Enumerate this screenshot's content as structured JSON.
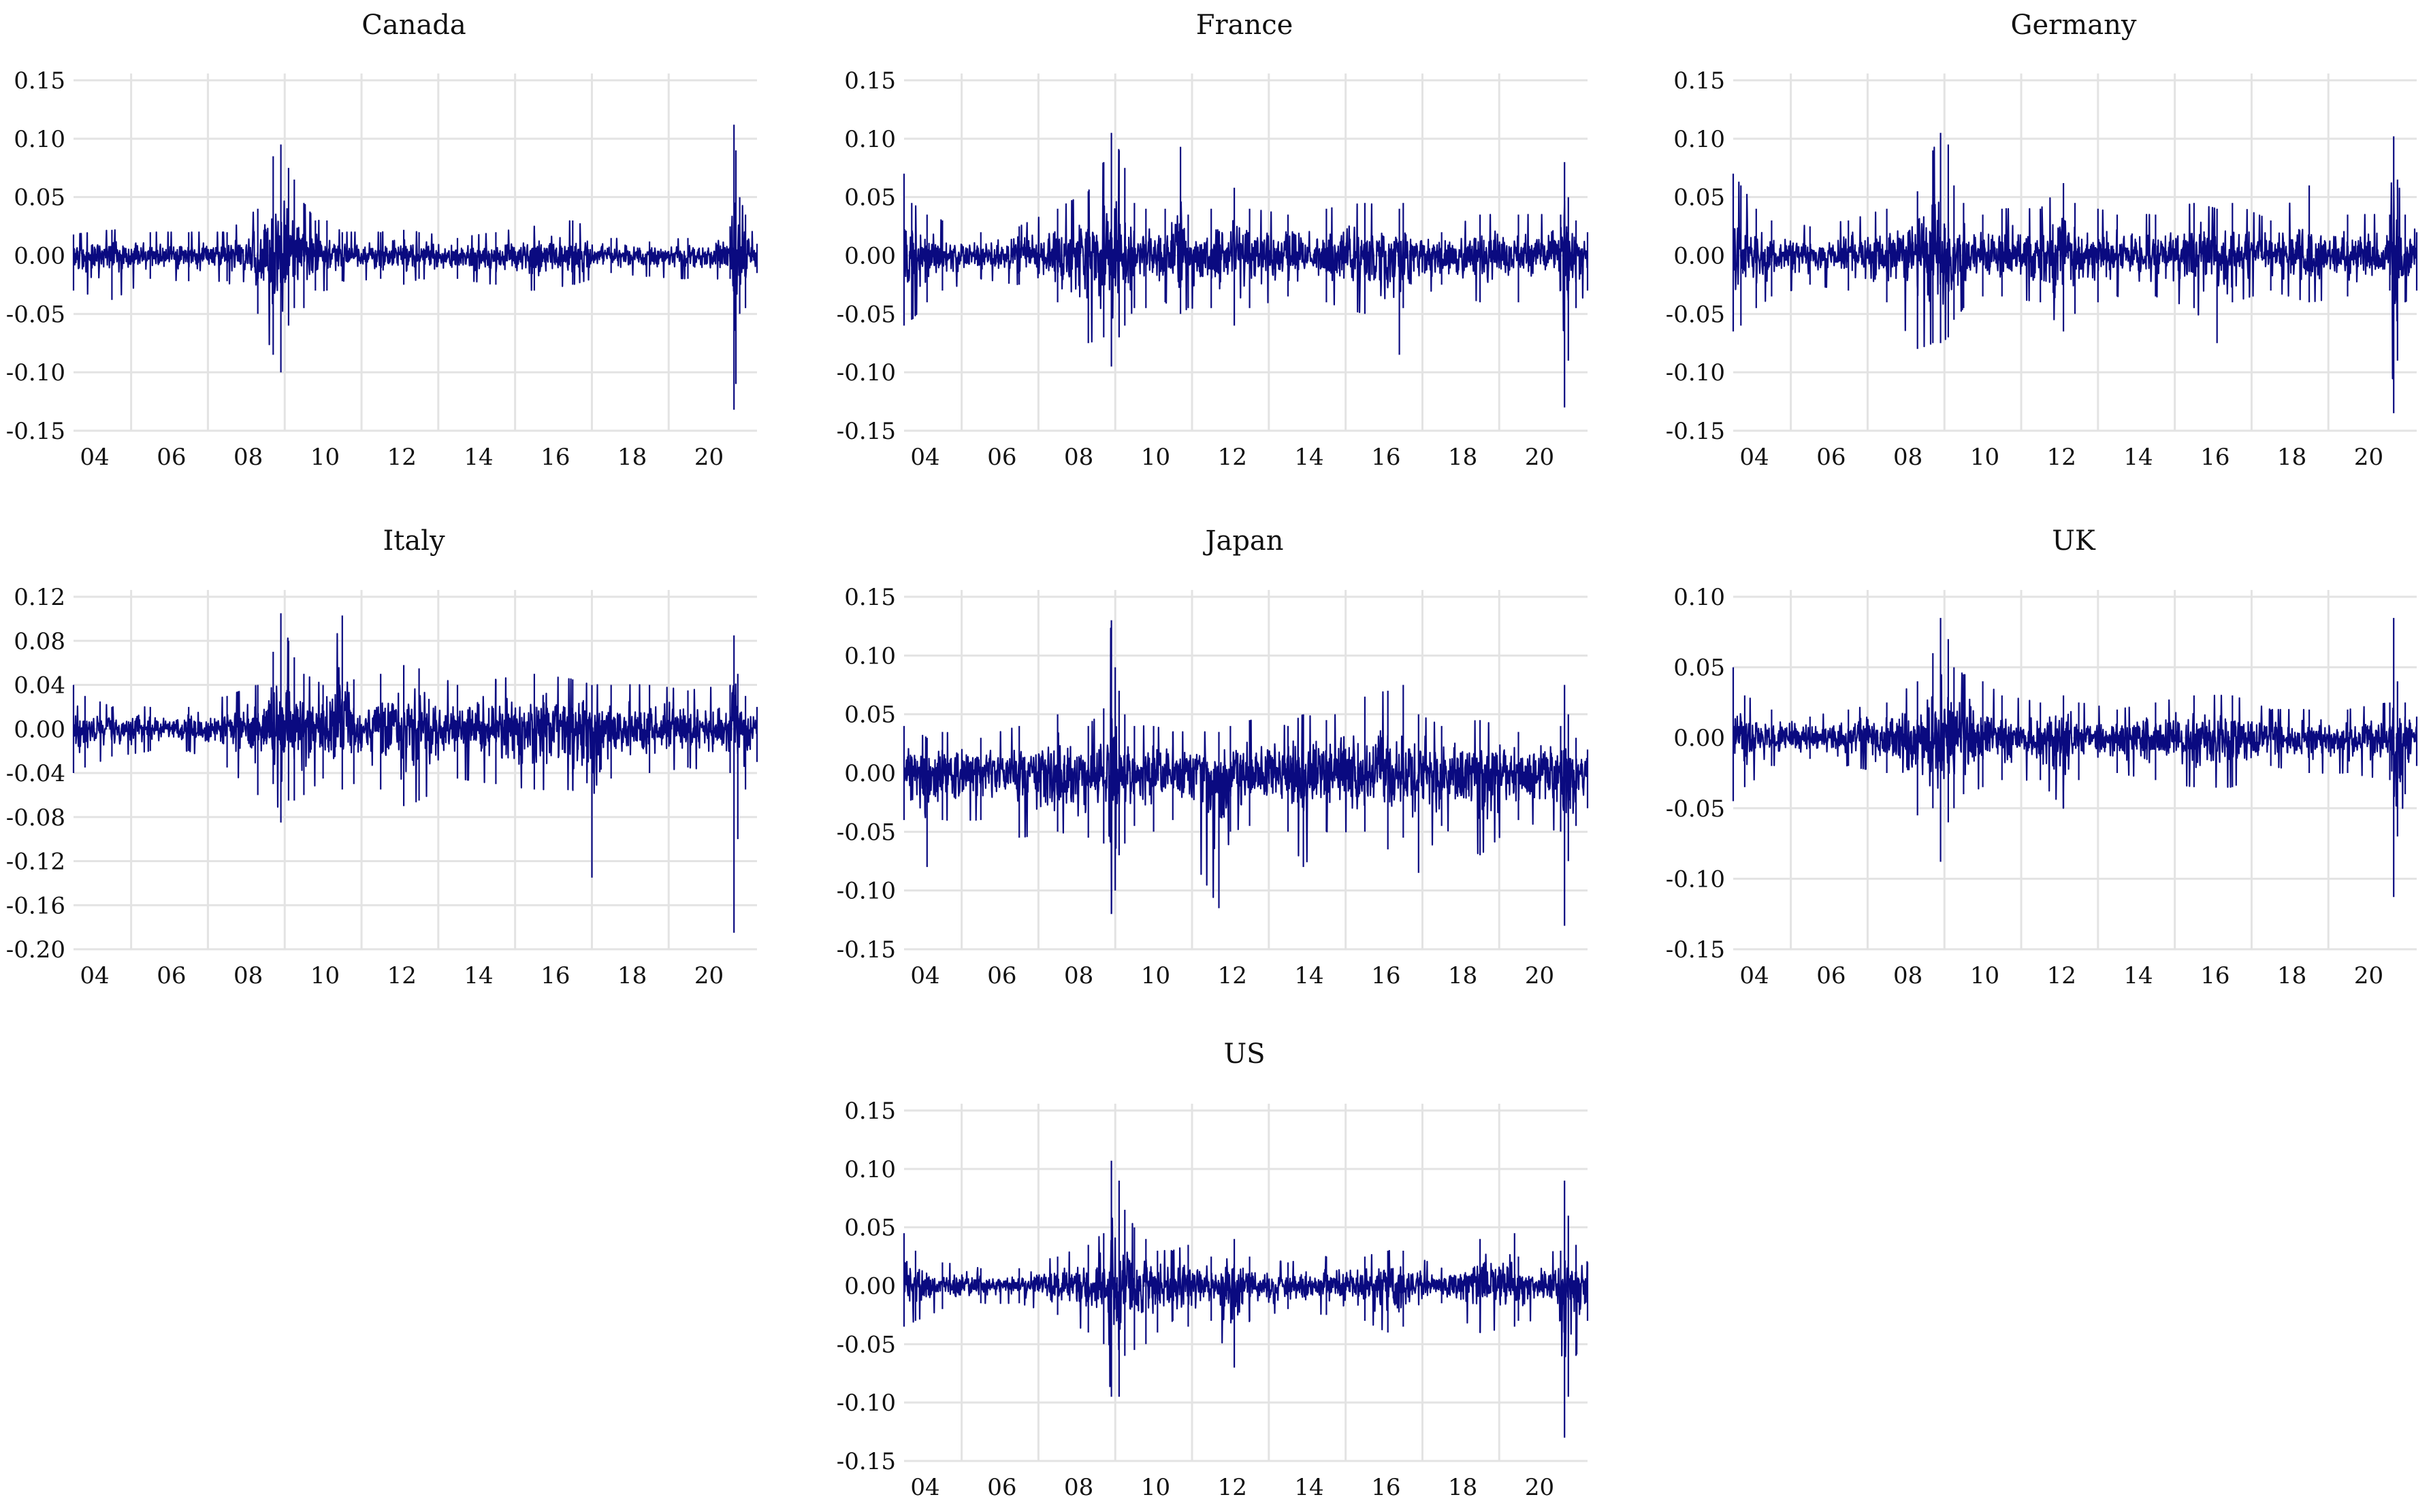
{
  "chart_data": [
    {
      "type": "line",
      "title": "Canada",
      "x_ticks": [
        "04",
        "06",
        "08",
        "10",
        "12",
        "14",
        "16",
        "18",
        "20"
      ],
      "y_ticks": [
        "0.15",
        "0.10",
        "0.05",
        "0.00",
        "-0.05",
        "-0.10",
        "-0.15"
      ],
      "ylim": [
        -0.15,
        0.15
      ],
      "xlim": [
        2003.0,
        2020.8
      ],
      "grid": true,
      "line_color": "#0a0a80",
      "series": [
        {
          "x": [
            2003.0,
            2004.0,
            2005.0,
            2006.0,
            2007.0,
            2007.8,
            2008.2,
            2008.4,
            2008.6,
            2008.75,
            2009.0,
            2009.3,
            2009.6,
            2010.0,
            2011.0,
            2011.6,
            2012.0,
            2013.0,
            2014.0,
            2015.0,
            2016.0,
            2017.0,
            2018.0,
            2019.0,
            2020.1,
            2020.2,
            2020.25,
            2020.35,
            2020.5,
            2020.8
          ],
          "low": [
            -0.03,
            -0.038,
            -0.02,
            -0.022,
            -0.022,
            -0.05,
            -0.085,
            -0.1,
            -0.06,
            -0.045,
            -0.045,
            -0.03,
            -0.03,
            -0.022,
            -0.02,
            -0.025,
            -0.02,
            -0.02,
            -0.025,
            -0.03,
            -0.025,
            -0.015,
            -0.018,
            -0.02,
            -0.02,
            -0.132,
            -0.11,
            -0.05,
            -0.045,
            -0.015
          ],
          "high": [
            0.018,
            0.022,
            0.02,
            0.02,
            0.02,
            0.04,
            0.085,
            0.095,
            0.075,
            0.065,
            0.045,
            0.03,
            0.03,
            0.02,
            0.02,
            0.022,
            0.02,
            0.015,
            0.02,
            0.025,
            0.03,
            0.015,
            0.012,
            0.015,
            0.025,
            0.112,
            0.09,
            0.05,
            0.035,
            0.01
          ]
        }
      ]
    },
    {
      "type": "line",
      "title": "France",
      "x_ticks": [
        "04",
        "06",
        "08",
        "10",
        "12",
        "14",
        "16",
        "18",
        "20"
      ],
      "y_ticks": [
        "0.15",
        "0.10",
        "0.05",
        "0.00",
        "-0.05",
        "-0.10",
        "-0.15"
      ],
      "ylim": [
        -0.15,
        0.15
      ],
      "xlim": [
        2003.0,
        2020.8
      ],
      "grid": true,
      "line_color": "#0a0a80",
      "series": [
        {
          "x": [
            2003.0,
            2003.2,
            2003.6,
            2004.0,
            2005.0,
            2006.0,
            2007.0,
            2007.8,
            2008.2,
            2008.4,
            2008.6,
            2008.75,
            2009.0,
            2009.3,
            2009.8,
            2010.2,
            2010.4,
            2011.0,
            2011.6,
            2012.0,
            2013.0,
            2014.0,
            2015.0,
            2015.9,
            2016.0,
            2017.0,
            2018.0,
            2019.0,
            2020.1,
            2020.2,
            2020.3,
            2020.5,
            2020.8
          ],
          "low": [
            -0.06,
            -0.055,
            -0.04,
            -0.03,
            -0.02,
            -0.025,
            -0.04,
            -0.075,
            -0.07,
            -0.095,
            -0.07,
            -0.06,
            -0.045,
            -0.045,
            -0.04,
            -0.05,
            -0.045,
            -0.045,
            -0.06,
            -0.045,
            -0.035,
            -0.04,
            -0.05,
            -0.085,
            -0.045,
            -0.025,
            -0.04,
            -0.04,
            -0.03,
            -0.13,
            -0.09,
            -0.045,
            -0.03
          ],
          "high": [
            0.07,
            0.045,
            0.035,
            0.03,
            0.02,
            0.025,
            0.04,
            0.055,
            0.08,
            0.105,
            0.09,
            0.075,
            0.045,
            0.04,
            0.04,
            0.093,
            0.035,
            0.04,
            0.058,
            0.04,
            0.035,
            0.04,
            0.045,
            0.04,
            0.045,
            0.02,
            0.035,
            0.035,
            0.035,
            0.08,
            0.05,
            0.03,
            0.02
          ]
        }
      ]
    },
    {
      "type": "line",
      "title": "Germany",
      "x_ticks": [
        "04",
        "06",
        "08",
        "10",
        "12",
        "14",
        "16",
        "18",
        "20"
      ],
      "y_ticks": [
        "0.15",
        "0.10",
        "0.05",
        "0.00",
        "-0.05",
        "-0.10",
        "-0.15"
      ],
      "ylim": [
        -0.15,
        0.15
      ],
      "xlim": [
        2003.0,
        2020.8
      ],
      "grid": true,
      "line_color": "#0a0a80",
      "series": [
        {
          "x": [
            2003.0,
            2003.2,
            2003.6,
            2004.0,
            2005.0,
            2006.0,
            2007.0,
            2007.8,
            2008.2,
            2008.4,
            2008.6,
            2008.75,
            2009.0,
            2009.5,
            2010.0,
            2011.0,
            2011.6,
            2011.9,
            2012.5,
            2013.0,
            2014.0,
            2015.0,
            2015.6,
            2016.0,
            2017.0,
            2018.0,
            2019.0,
            2020.1,
            2020.2,
            2020.3,
            2020.5,
            2020.8
          ],
          "low": [
            -0.065,
            -0.06,
            -0.045,
            -0.035,
            -0.025,
            -0.03,
            -0.04,
            -0.08,
            -0.075,
            -0.075,
            -0.07,
            -0.055,
            -0.045,
            -0.035,
            -0.035,
            -0.04,
            -0.065,
            -0.05,
            -0.04,
            -0.035,
            -0.035,
            -0.045,
            -0.075,
            -0.04,
            -0.03,
            -0.04,
            -0.035,
            -0.03,
            -0.135,
            -0.09,
            -0.04,
            -0.03
          ],
          "high": [
            0.07,
            0.06,
            0.04,
            0.03,
            0.025,
            0.03,
            0.04,
            0.055,
            0.09,
            0.105,
            0.095,
            0.06,
            0.045,
            0.035,
            0.04,
            0.04,
            0.062,
            0.045,
            0.04,
            0.035,
            0.035,
            0.045,
            0.04,
            0.045,
            0.03,
            0.06,
            0.035,
            0.035,
            0.102,
            0.065,
            0.035,
            0.02
          ]
        }
      ]
    },
    {
      "type": "line",
      "title": "Italy",
      "x_ticks": [
        "04",
        "06",
        "08",
        "10",
        "12",
        "14",
        "16",
        "18",
        "20"
      ],
      "y_ticks": [
        "0.12",
        "0.08",
        "0.04",
        "0.00",
        "-0.04",
        "-0.08",
        "-0.12",
        "-0.16",
        "-0.20"
      ],
      "ylim": [
        -0.2,
        0.12
      ],
      "xlim": [
        2003.0,
        2020.8
      ],
      "grid": true,
      "line_color": "#0a0a80",
      "series": [
        {
          "x": [
            2003.0,
            2003.3,
            2004.0,
            2005.0,
            2006.0,
            2007.0,
            2007.8,
            2008.2,
            2008.4,
            2008.6,
            2008.75,
            2009.0,
            2009.5,
            2010.0,
            2010.3,
            2011.0,
            2011.6,
            2012.0,
            2013.0,
            2014.0,
            2015.0,
            2016.0,
            2016.5,
            2017.0,
            2018.0,
            2019.0,
            2020.1,
            2020.2,
            2020.3,
            2020.5,
            2020.8
          ],
          "low": [
            -0.04,
            -0.035,
            -0.025,
            -0.02,
            -0.02,
            -0.035,
            -0.06,
            -0.05,
            -0.085,
            -0.065,
            -0.065,
            -0.06,
            -0.045,
            -0.055,
            -0.05,
            -0.055,
            -0.07,
            -0.065,
            -0.045,
            -0.05,
            -0.055,
            -0.055,
            -0.135,
            -0.045,
            -0.04,
            -0.035,
            -0.04,
            -0.185,
            -0.1,
            -0.055,
            -0.03
          ],
          "high": [
            0.04,
            0.03,
            0.02,
            0.02,
            0.02,
            0.03,
            0.04,
            0.07,
            0.105,
            0.08,
            0.065,
            0.05,
            0.04,
            0.103,
            0.045,
            0.05,
            0.058,
            0.055,
            0.04,
            0.045,
            0.05,
            0.045,
            0.04,
            0.04,
            0.04,
            0.035,
            0.04,
            0.085,
            0.05,
            0.03,
            0.02
          ]
        }
      ]
    },
    {
      "type": "line",
      "title": "Japan",
      "x_ticks": [
        "04",
        "06",
        "08",
        "10",
        "12",
        "14",
        "16",
        "18",
        "20"
      ],
      "y_ticks": [
        "0.15",
        "0.10",
        "0.05",
        "0.00",
        "-0.05",
        "-0.10",
        "-0.15"
      ],
      "ylim": [
        -0.15,
        0.15
      ],
      "xlim": [
        2003.0,
        2020.8
      ],
      "grid": true,
      "line_color": "#0a0a80",
      "series": [
        {
          "x": [
            2003.0,
            2003.6,
            2004.0,
            2005.0,
            2006.0,
            2007.0,
            2007.8,
            2008.2,
            2008.4,
            2008.5,
            2008.6,
            2008.75,
            2009.0,
            2009.5,
            2010.0,
            2011.2,
            2011.5,
            2012.0,
            2013.0,
            2013.4,
            2014.0,
            2015.0,
            2015.6,
            2016.0,
            2016.4,
            2017.0,
            2018.0,
            2019.0,
            2020.1,
            2020.2,
            2020.3,
            2020.5,
            2020.8
          ],
          "low": [
            -0.04,
            -0.08,
            -0.04,
            -0.04,
            -0.055,
            -0.05,
            -0.055,
            -0.06,
            -0.12,
            -0.1,
            -0.07,
            -0.06,
            -0.045,
            -0.05,
            -0.04,
            -0.115,
            -0.05,
            -0.045,
            -0.05,
            -0.08,
            -0.05,
            -0.05,
            -0.065,
            -0.055,
            -0.085,
            -0.045,
            -0.07,
            -0.04,
            -0.05,
            -0.13,
            -0.075,
            -0.045,
            -0.03
          ],
          "high": [
            0.04,
            0.03,
            0.035,
            0.03,
            0.04,
            0.05,
            0.04,
            0.055,
            0.13,
            0.09,
            0.07,
            0.05,
            0.04,
            0.04,
            0.035,
            0.035,
            0.04,
            0.045,
            0.04,
            0.05,
            0.045,
            0.065,
            0.07,
            0.075,
            0.05,
            0.04,
            0.045,
            0.035,
            0.04,
            0.075,
            0.05,
            0.03,
            0.02
          ]
        }
      ]
    },
    {
      "type": "line",
      "title": "UK",
      "x_ticks": [
        "04",
        "06",
        "08",
        "10",
        "12",
        "14",
        "16",
        "18",
        "20"
      ],
      "y_ticks": [
        "0.10",
        "0.05",
        "0.00",
        "-0.05",
        "-0.10",
        "-0.15"
      ],
      "ylim": [
        -0.15,
        0.1
      ],
      "xlim": [
        2003.0,
        2020.8
      ],
      "grid": true,
      "line_color": "#0a0a80",
      "series": [
        {
          "x": [
            2003.0,
            2003.3,
            2004.0,
            2005.0,
            2006.0,
            2007.0,
            2007.8,
            2008.2,
            2008.4,
            2008.6,
            2008.75,
            2009.0,
            2009.5,
            2010.0,
            2011.0,
            2011.6,
            2012.0,
            2013.0,
            2014.0,
            2015.0,
            2016.0,
            2017.0,
            2018.0,
            2019.0,
            2020.1,
            2020.2,
            2020.3,
            2020.5,
            2020.8
          ],
          "low": [
            -0.045,
            -0.035,
            -0.02,
            -0.015,
            -0.02,
            -0.025,
            -0.055,
            -0.05,
            -0.088,
            -0.06,
            -0.05,
            -0.04,
            -0.035,
            -0.03,
            -0.03,
            -0.05,
            -0.03,
            -0.025,
            -0.03,
            -0.035,
            -0.035,
            -0.02,
            -0.025,
            -0.025,
            -0.03,
            -0.113,
            -0.07,
            -0.04,
            -0.02
          ],
          "high": [
            0.05,
            0.03,
            0.02,
            0.015,
            0.02,
            0.025,
            0.04,
            0.06,
            0.085,
            0.07,
            0.05,
            0.045,
            0.04,
            0.03,
            0.025,
            0.03,
            0.025,
            0.02,
            0.025,
            0.03,
            0.03,
            0.02,
            0.02,
            0.02,
            0.025,
            0.085,
            0.04,
            0.025,
            0.015
          ]
        }
      ]
    },
    {
      "type": "line",
      "title": "US",
      "x_ticks": [
        "04",
        "06",
        "08",
        "10",
        "12",
        "14",
        "16",
        "18",
        "20"
      ],
      "y_ticks": [
        "0.15",
        "0.10",
        "0.05",
        "0.00",
        "-0.05",
        "-0.10",
        "-0.15"
      ],
      "ylim": [
        -0.15,
        0.15
      ],
      "xlim": [
        2003.0,
        2020.8
      ],
      "grid": true,
      "line_color": "#0a0a80",
      "series": [
        {
          "x": [
            2003.0,
            2003.3,
            2004.0,
            2005.0,
            2006.0,
            2007.0,
            2007.8,
            2008.2,
            2008.4,
            2008.6,
            2008.75,
            2009.0,
            2009.3,
            2009.6,
            2010.0,
            2010.4,
            2011.0,
            2011.6,
            2012.0,
            2013.0,
            2014.0,
            2015.0,
            2015.6,
            2016.0,
            2017.0,
            2018.0,
            2018.9,
            2019.0,
            2020.1,
            2020.2,
            2020.3,
            2020.5,
            2020.8
          ],
          "low": [
            -0.035,
            -0.03,
            -0.02,
            -0.015,
            -0.015,
            -0.025,
            -0.04,
            -0.05,
            -0.095,
            -0.095,
            -0.06,
            -0.055,
            -0.05,
            -0.04,
            -0.03,
            -0.035,
            -0.03,
            -0.07,
            -0.03,
            -0.02,
            -0.025,
            -0.03,
            -0.04,
            -0.035,
            -0.015,
            -0.04,
            -0.035,
            -0.03,
            -0.03,
            -0.13,
            -0.095,
            -0.06,
            -0.03
          ],
          "high": [
            0.045,
            0.03,
            0.02,
            0.015,
            0.015,
            0.025,
            0.035,
            0.045,
            0.107,
            0.09,
            0.065,
            0.05,
            0.04,
            0.03,
            0.03,
            0.035,
            0.025,
            0.04,
            0.025,
            0.02,
            0.025,
            0.025,
            0.03,
            0.03,
            0.015,
            0.04,
            0.045,
            0.025,
            0.03,
            0.09,
            0.06,
            0.035,
            0.02
          ]
        }
      ]
    }
  ]
}
